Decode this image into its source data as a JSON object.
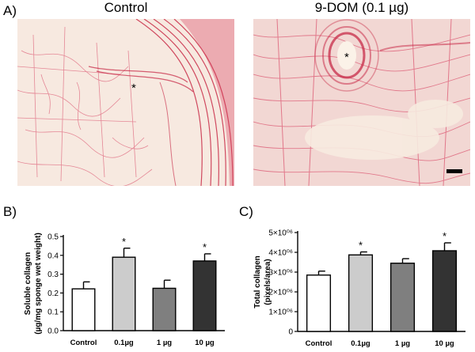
{
  "panels": {
    "a": {
      "label": "A)",
      "left": {
        "title": "Control",
        "asterisk": "*"
      },
      "right": {
        "title": "9-DOM (0.1 µg)",
        "asterisk": "*"
      },
      "colors": {
        "background": "#f7e9e0",
        "fibers": "#d6385a",
        "dense_fibers": "#c5203f"
      }
    },
    "b": {
      "label": "B)"
    },
    "c": {
      "label": "C)"
    }
  },
  "chart_data": [
    {
      "id": "b",
      "type": "bar",
      "categories": [
        "Control",
        "0.1µg",
        "1 µg",
        "10 µg"
      ],
      "series": [
        {
          "values": [
            0.222,
            0.39,
            0.225,
            0.37
          ],
          "errors": [
            0.037,
            0.048,
            0.043,
            0.038
          ],
          "colors": [
            "#ffffff",
            "#cccccc",
            "#7f7f7f",
            "#333333"
          ],
          "significance": [
            "",
            "*",
            "",
            "*"
          ]
        }
      ],
      "ylabel_lines": [
        "Soluble collagen",
        "(µg/mg sponge wet weight)"
      ],
      "ylim": [
        0,
        0.5
      ],
      "yticks": [
        0.0,
        0.1,
        0.2,
        0.3,
        0.4,
        0.5
      ],
      "ytick_labels": [
        "0.0",
        "0.1",
        "0.2",
        "0.3",
        "0.4",
        "0.5"
      ],
      "grid": false
    },
    {
      "id": "c",
      "type": "bar",
      "categories": [
        "Control",
        "0.1µg",
        "1 µg",
        "10 µg"
      ],
      "series": [
        {
          "values": [
            2850000,
            3870000,
            3450000,
            4080000
          ],
          "errors": [
            200000,
            150000,
            230000,
            400000
          ],
          "colors": [
            "#ffffff",
            "#cccccc",
            "#7f7f7f",
            "#333333"
          ],
          "significance": [
            "",
            "*",
            "",
            "*"
          ]
        }
      ],
      "ylabel_lines": [
        "Total collagen",
        "(pixels/area)"
      ],
      "ylim": [
        0,
        5000000
      ],
      "yticks": [
        0,
        1000000,
        2000000,
        3000000,
        4000000,
        5000000
      ],
      "ytick_labels": [
        "0",
        "1×10⁰⁶",
        "2×10⁰⁶",
        "3×10⁰⁶",
        "4×10⁰⁶",
        "5×10⁰⁶"
      ],
      "grid": false
    }
  ]
}
